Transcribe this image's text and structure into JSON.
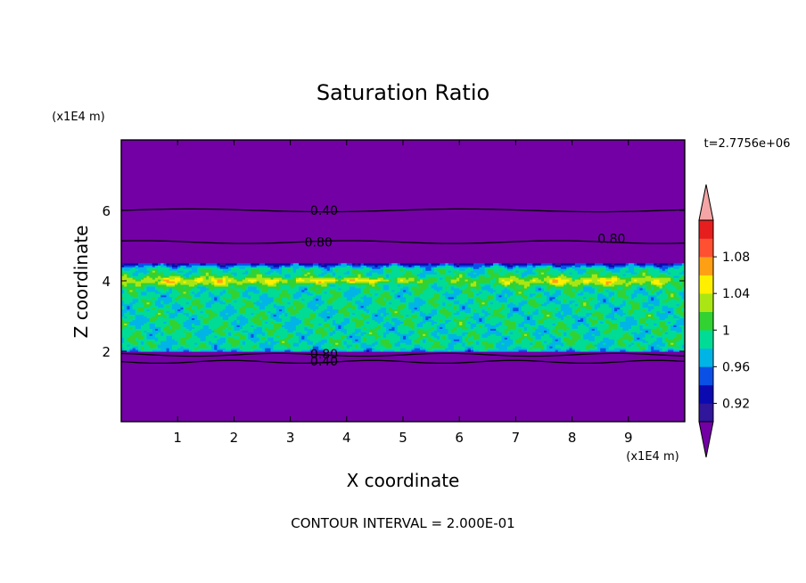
{
  "chart_data": {
    "type": "heatmap",
    "title": "Saturation Ratio",
    "xlabel": "X coordinate",
    "ylabel": "Z coordinate",
    "x_unit": "(x1E4 m)",
    "y_unit": "(x1E4 m)",
    "xlim": [
      0,
      10
    ],
    "ylim": [
      0,
      8
    ],
    "x_ticks": [
      1,
      2,
      3,
      4,
      5,
      6,
      7,
      8,
      9
    ],
    "y_ticks": [
      2,
      4,
      6
    ],
    "time_label": "t=2.7756e+06",
    "footer": "CONTOUR INTERVAL = 2.000E-01",
    "colorbar": {
      "levels": [
        0.9,
        0.92,
        0.94,
        0.96,
        0.98,
        1.0,
        1.02,
        1.04,
        1.06,
        1.08,
        1.1
      ],
      "tick_labels": [
        {
          "value": 0.92,
          "label": "0.92"
        },
        {
          "value": 0.96,
          "label": "0.96"
        },
        {
          "value": 1.0,
          "label": "1"
        },
        {
          "value": 1.04,
          "label": "1.04"
        },
        {
          "value": 1.08,
          "label": "1.08"
        }
      ],
      "colors": [
        "#30169a",
        "#0a0ab0",
        "#0a50e6",
        "#00b4e6",
        "#00dc96",
        "#32d232",
        "#aae614",
        "#fff000",
        "#ffa014",
        "#ff5032",
        "#e61e1e"
      ],
      "under_color": "#7300a5",
      "over_color": "#f5a5a5"
    },
    "moist_layer_z": [
      2.0,
      4.5
    ],
    "contour_lines": [
      {
        "value": 0.4,
        "z": 6.0,
        "label": "0.40"
      },
      {
        "value": 0.8,
        "z": 5.1,
        "label": "0.80"
      },
      {
        "value": 0.8,
        "z": 1.9,
        "label": "0.80"
      },
      {
        "value": 0.4,
        "z": 1.7,
        "label": "0.40"
      }
    ],
    "label_08_upper_right": "0.80",
    "label_08_lower": "0.80"
  }
}
